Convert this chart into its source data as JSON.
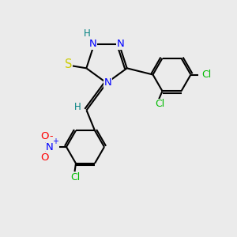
{
  "background_color": "#ebebeb",
  "bond_color": "#000000",
  "colors": {
    "N": "#0000ff",
    "S": "#cccc00",
    "Cl": "#00bb00",
    "O": "#ff0000",
    "H": "#008080",
    "C": "#000000"
  }
}
